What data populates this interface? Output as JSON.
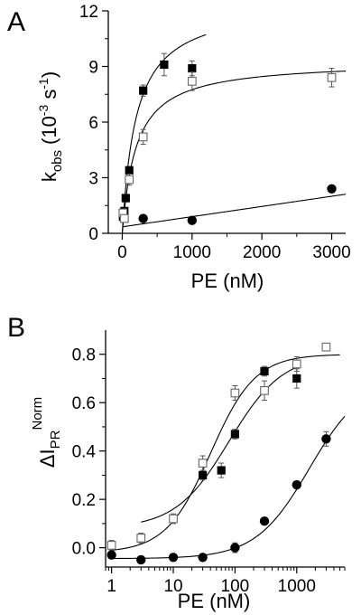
{
  "chart_data": [
    {
      "panel_label": "A",
      "type": "scatter",
      "xlabel": "PE (nM)",
      "ylabel": {
        "main": "k",
        "sub": "obs",
        "unit_open": "(10",
        "exp": "-3",
        "unit_mid": " s",
        "exp2": "-1",
        "unit_close": ")"
      },
      "xlim": [
        -200,
        3200
      ],
      "ylim": [
        0,
        12
      ],
      "xticks": [
        0,
        1000,
        2000,
        3000
      ],
      "xtick_labels": [
        "0",
        "1000",
        "2000",
        "3000"
      ],
      "yticks": [
        0,
        3,
        6,
        9,
        12
      ],
      "ytick_labels": [
        "0",
        "3",
        "6",
        "9",
        "12"
      ],
      "xscale": "linear",
      "grid": false,
      "series": [
        {
          "marker": "filled-square",
          "points": [
            {
              "x": 10,
              "y": 0.9,
              "err": 0.2
            },
            {
              "x": 30,
              "y": 1.2,
              "err": 0.2
            },
            {
              "x": 50,
              "y": 1.9,
              "err": 0.2
            },
            {
              "x": 100,
              "y": 3.4,
              "err": 0.2
            },
            {
              "x": 300,
              "y": 7.7,
              "err": 0.3
            },
            {
              "x": 600,
              "y": 9.1,
              "err": 0.6
            },
            {
              "x": 1000,
              "y": 8.9,
              "err": 0.4
            }
          ],
          "fit": {
            "model": "hyperbolic",
            "kmax": 12.5,
            "k50": 200,
            "x_from": 0,
            "x_to": 1200
          }
        },
        {
          "marker": "open-square",
          "points": [
            {
              "x": 10,
              "y": 1.1,
              "err": 0.2
            },
            {
              "x": 30,
              "y": 0.8,
              "err": 0.2
            },
            {
              "x": 100,
              "y": 2.9,
              "err": 0.3
            },
            {
              "x": 300,
              "y": 5.2,
              "err": 0.4
            },
            {
              "x": 1000,
              "y": 8.2,
              "err": 0.5
            },
            {
              "x": 3000,
              "y": 8.4,
              "err": 0.5
            }
          ],
          "fit": {
            "model": "hyperbolic",
            "kmax": 9.3,
            "k50": 200,
            "x_from": 0,
            "x_to": 3200
          }
        },
        {
          "marker": "filled-circle",
          "points": [
            {
              "x": 300,
              "y": 0.8,
              "err": 0
            },
            {
              "x": 1000,
              "y": 0.7,
              "err": 0
            },
            {
              "x": 3000,
              "y": 2.4,
              "err": 0
            }
          ],
          "fit": {
            "model": "linear",
            "intercept": 0.35,
            "slope": 0.00055,
            "x_from": 0,
            "x_to": 3200
          }
        }
      ]
    },
    {
      "panel_label": "B",
      "type": "scatter",
      "xlabel": "PE (nM)",
      "ylabel": {
        "main": "ΔI",
        "sub": "PR",
        "sup": "Norm"
      },
      "xlim": [
        0.8,
        6000
      ],
      "ylim": [
        -0.08,
        0.9
      ],
      "xscale": "log",
      "xticks": [
        1,
        10,
        100,
        1000
      ],
      "xtick_labels": [
        "1",
        "10",
        "100",
        "1000"
      ],
      "yticks": [
        0.0,
        0.2,
        0.4,
        0.6,
        0.8
      ],
      "ytick_labels": [
        "0.0",
        "0.2",
        "0.4",
        "0.6",
        "0.8"
      ],
      "grid": false,
      "series": [
        {
          "marker": "filled-square",
          "points": [
            {
              "x": 30,
              "y": 0.3,
              "err": 0.02
            },
            {
              "x": 60,
              "y": 0.32,
              "err": 0.03
            },
            {
              "x": 100,
              "y": 0.47,
              "err": 0.02
            },
            {
              "x": 300,
              "y": 0.73,
              "err": 0.02
            },
            {
              "x": 1000,
              "y": 0.7,
              "err": 0.04
            }
          ],
          "fit": {
            "model": "hill",
            "bottom": 0.08,
            "top": 0.8,
            "ec50": 80,
            "n": 1.0,
            "x_from": 3,
            "x_to": 1000
          }
        },
        {
          "marker": "open-square",
          "points": [
            {
              "x": 1,
              "y": 0.01,
              "err": 0.02
            },
            {
              "x": 3,
              "y": 0.04,
              "err": 0.02
            },
            {
              "x": 10,
              "y": 0.12,
              "err": 0.02
            },
            {
              "x": 30,
              "y": 0.35,
              "err": 0.03
            },
            {
              "x": 100,
              "y": 0.64,
              "err": 0.03
            },
            {
              "x": 300,
              "y": 0.65,
              "err": 0.04
            },
            {
              "x": 1000,
              "y": 0.76,
              "err": 0.03
            },
            {
              "x": 3000,
              "y": 0.83,
              "err": 0.01
            }
          ],
          "fit": {
            "model": "hill",
            "bottom": -0.02,
            "top": 0.8,
            "ec50": 40,
            "n": 1.2,
            "x_from": 1,
            "x_to": 5000
          }
        },
        {
          "marker": "filled-circle",
          "points": [
            {
              "x": 1,
              "y": -0.03,
              "err": 0
            },
            {
              "x": 3,
              "y": -0.05,
              "err": 0
            },
            {
              "x": 10,
              "y": -0.04,
              "err": 0
            },
            {
              "x": 30,
              "y": -0.04,
              "err": 0
            },
            {
              "x": 100,
              "y": 0.0,
              "err": 0.02
            },
            {
              "x": 300,
              "y": 0.11,
              "err": 0
            },
            {
              "x": 1000,
              "y": 0.26,
              "err": 0
            },
            {
              "x": 3000,
              "y": 0.45,
              "err": 0.03
            }
          ],
          "fit": {
            "model": "hill",
            "bottom": -0.045,
            "top": 0.7,
            "ec50": 1600,
            "n": 1.0,
            "x_from": 0.9,
            "x_to": 6000
          }
        }
      ]
    }
  ]
}
